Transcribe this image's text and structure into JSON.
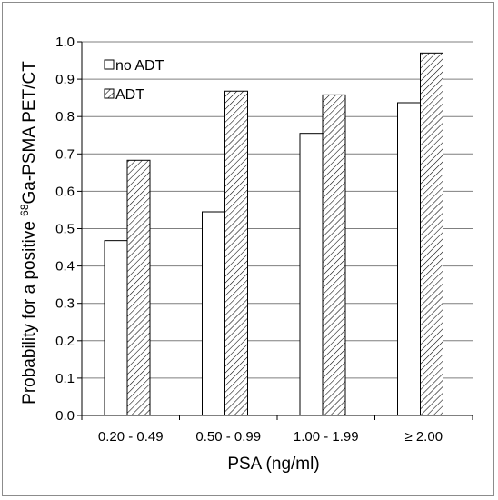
{
  "chart_data": {
    "type": "bar",
    "categories": [
      "0.20 - 0.49",
      "0.50 - 0.99",
      "1.00 - 1.99",
      "≥ 2.00"
    ],
    "series": [
      {
        "name": "no ADT",
        "values": [
          0.468,
          0.545,
          0.755,
          0.837
        ],
        "fill": "white"
      },
      {
        "name": "ADT",
        "values": [
          0.683,
          0.868,
          0.858,
          0.97
        ],
        "fill": "hatched"
      }
    ],
    "xlabel": "PSA (ng/ml)",
    "ylabel": {
      "prefix": "Probability for a positive ",
      "superscript": "68",
      "suffix": "Ga-PSMA PET/CT"
    },
    "ylim": [
      0,
      1.0
    ],
    "yticks": [
      "0.0",
      "0.1",
      "0.2",
      "0.3",
      "0.4",
      "0.5",
      "0.6",
      "0.7",
      "0.8",
      "0.9",
      "1.0"
    ],
    "grid": true,
    "legend_position": "top-left",
    "colors": {
      "bar_stroke": "#000000",
      "grid": "#7f7f7f",
      "hatch": "#000000"
    }
  }
}
